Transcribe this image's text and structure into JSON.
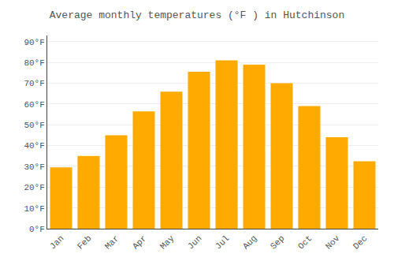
{
  "chart_data": {
    "type": "bar",
    "title": "Average monthly temperatures (°F ) in Hutchinson",
    "categories": [
      "Jan",
      "Feb",
      "Mar",
      "Apr",
      "May",
      "Jun",
      "Jul",
      "Aug",
      "Sep",
      "Oct",
      "Nov",
      "Dec"
    ],
    "values": [
      29.5,
      35.0,
      45.0,
      56.5,
      66.0,
      75.5,
      81.0,
      79.0,
      70.0,
      59.0,
      44.0,
      32.5
    ],
    "color": "#FFAA00",
    "ylim": [
      0,
      93
    ],
    "yticks": [
      {
        "value": 0,
        "label": "0°F"
      },
      {
        "value": 10,
        "label": "10°F"
      },
      {
        "value": 20,
        "label": "20°F"
      },
      {
        "value": 30,
        "label": "30°F"
      },
      {
        "value": 40,
        "label": "40°F"
      },
      {
        "value": 50,
        "label": "50°F"
      },
      {
        "value": 60,
        "label": "60°F"
      },
      {
        "value": 70,
        "label": "70°F"
      },
      {
        "value": 80,
        "label": "80°F"
      },
      {
        "value": 90,
        "label": "90°F"
      }
    ],
    "grid": true
  }
}
